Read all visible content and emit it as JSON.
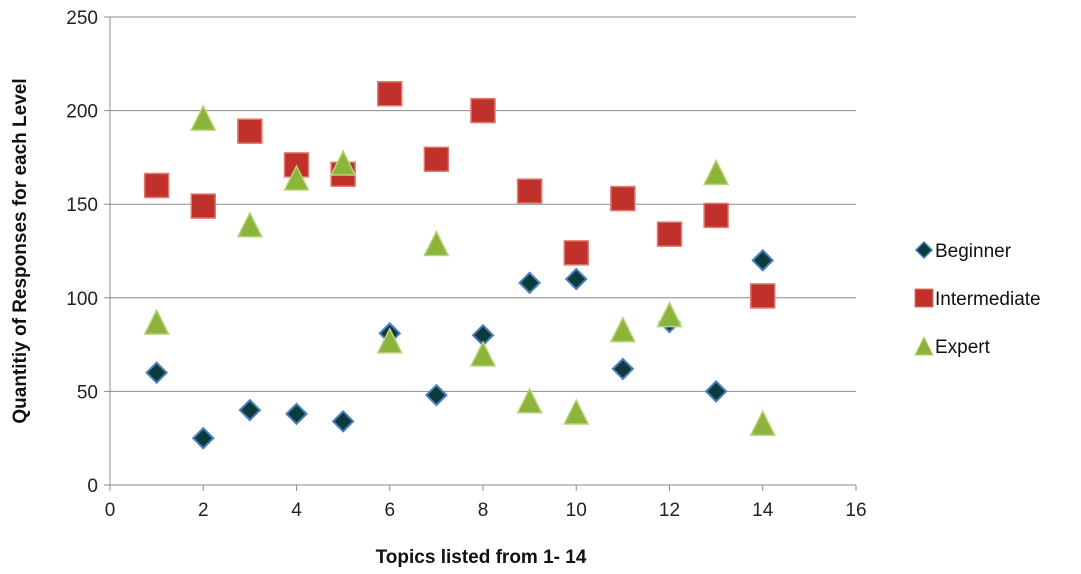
{
  "chart_data": {
    "type": "scatter",
    "xlabel": "Topics listed from 1- 14",
    "ylabel": "Quantitiy of Responses for each Level",
    "xlim": [
      0,
      16
    ],
    "ylim": [
      0,
      250
    ],
    "xticks": [
      0,
      2,
      4,
      6,
      8,
      10,
      12,
      14,
      16
    ],
    "yticks": [
      0,
      50,
      100,
      150,
      200,
      250
    ],
    "grid": "horizontal",
    "legend_position": "right",
    "series": [
      {
        "name": "Beginner",
        "marker": "diamond",
        "color": "#0d3a3a",
        "edge_color": "#4a7fc1",
        "points": [
          [
            1,
            60
          ],
          [
            2,
            25
          ],
          [
            3,
            40
          ],
          [
            4,
            38
          ],
          [
            5,
            34
          ],
          [
            6,
            81
          ],
          [
            7,
            48
          ],
          [
            8,
            80
          ],
          [
            9,
            108
          ],
          [
            10,
            110
          ],
          [
            11,
            62
          ],
          [
            12,
            87
          ],
          [
            13,
            50
          ],
          [
            14,
            120
          ]
        ]
      },
      {
        "name": "Intermediate",
        "marker": "square",
        "color": "#c0312c",
        "edge_color": "#e07a6e",
        "points": [
          [
            1,
            160
          ],
          [
            2,
            149
          ],
          [
            3,
            189
          ],
          [
            4,
            171
          ],
          [
            5,
            166
          ],
          [
            6,
            209
          ],
          [
            7,
            174
          ],
          [
            8,
            200
          ],
          [
            9,
            157
          ],
          [
            10,
            124
          ],
          [
            11,
            153
          ],
          [
            12,
            134
          ],
          [
            13,
            144
          ],
          [
            14,
            101
          ]
        ]
      },
      {
        "name": "Expert",
        "marker": "triangle",
        "color": "#8cb43a",
        "edge_color": "#b9d37a",
        "points": [
          [
            1,
            87
          ],
          [
            2,
            196
          ],
          [
            3,
            139
          ],
          [
            4,
            164
          ],
          [
            5,
            172
          ],
          [
            6,
            77
          ],
          [
            7,
            129
          ],
          [
            8,
            70
          ],
          [
            9,
            45
          ],
          [
            10,
            39
          ],
          [
            11,
            83
          ],
          [
            12,
            91
          ],
          [
            13,
            167
          ],
          [
            14,
            33
          ]
        ]
      }
    ]
  }
}
